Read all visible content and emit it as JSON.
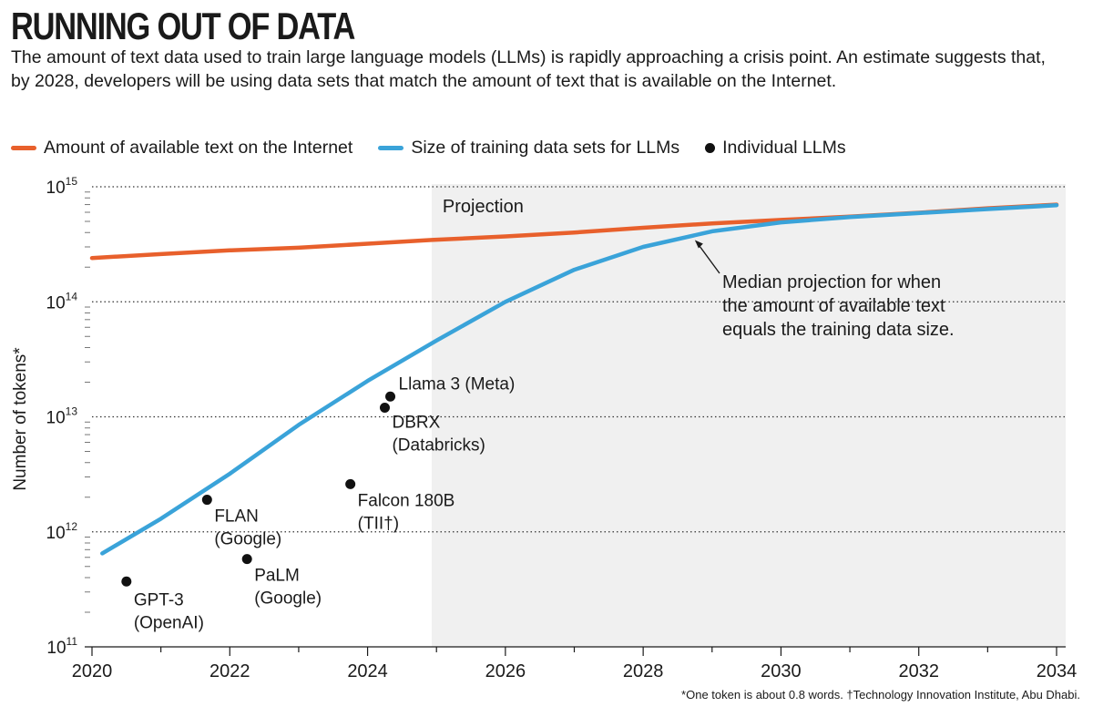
{
  "header": {
    "title": "RUNNING OUT OF DATA",
    "subtitle": "The amount of text data used to train large language models (LLMs) is rapidly approaching a crisis point. An estimate suggests that, by 2028, developers will be using data sets that match the amount of text that is available on the Internet."
  },
  "legend": {
    "internet": "Amount of available text on the Internet",
    "training": "Size of training data sets for LLMs",
    "llms": "Individual LLMs"
  },
  "colors": {
    "internet": "#e8602c",
    "training": "#3aa3d9",
    "llm": "#111111",
    "projection_bg": "#f0f0f0",
    "grid": "#333333"
  },
  "footnote": "*One token is about 0.8 words. †Technology Innovation Institute, Abu Dhabi.",
  "chart_data": {
    "type": "line",
    "title": "RUNNING OUT OF DATA",
    "xlabel": "",
    "ylabel": "Number of tokens*",
    "xlim": [
      2020,
      2034
    ],
    "y_scale": "log10",
    "ylim_exp": [
      11,
      15
    ],
    "x_ticks": [
      "2020",
      "2022",
      "2024",
      "2026",
      "2028",
      "2030",
      "2032",
      "2034"
    ],
    "x_tick_values": [
      2020,
      2022,
      2024,
      2026,
      2028,
      2030,
      2032,
      2034
    ],
    "y_ticks": [
      {
        "exp": 11,
        "base": "10",
        "sup": "11"
      },
      {
        "exp": 12,
        "base": "10",
        "sup": "12"
      },
      {
        "exp": 13,
        "base": "10",
        "sup": "13"
      },
      {
        "exp": 14,
        "base": "10",
        "sup": "14"
      },
      {
        "exp": 15,
        "base": "10",
        "sup": "15"
      }
    ],
    "projection": {
      "start": 2024.93,
      "label": "Projection"
    },
    "series": [
      {
        "name": "Amount of available text on the Internet",
        "key": "internet",
        "x": [
          2020.0,
          2021.0,
          2022.0,
          2023.0,
          2024.0,
          2024.93,
          2026.0,
          2027.0,
          2028.0,
          2029.0,
          2030.0,
          2031.0,
          2032.0,
          2033.0,
          2034.0
        ],
        "y": [
          240000000000000.0,
          260000000000000.0,
          280000000000000.0,
          295000000000000.0,
          320000000000000.0,
          345000000000000.0,
          370000000000000.0,
          400000000000000.0,
          440000000000000.0,
          480000000000000.0,
          515000000000000.0,
          550000000000000.0,
          595000000000000.0,
          650000000000000.0,
          700000000000000.0
        ]
      },
      {
        "name": "Size of training data sets for LLMs",
        "key": "training",
        "x": [
          2020.15,
          2021.0,
          2022.0,
          2023.0,
          2024.0,
          2025.0,
          2026.0,
          2027.0,
          2028.0,
          2029.0,
          2030.0,
          2031.0,
          2032.0,
          2033.0,
          2034.0
        ],
        "y": [
          650000000000.0,
          1300000000000.0,
          3200000000000.0,
          8500000000000.0,
          20500000000000.0,
          46000000000000.0,
          100000000000000.0,
          190000000000000.0,
          300000000000000.0,
          410000000000000.0,
          490000000000000.0,
          545000000000000.0,
          590000000000000.0,
          640000000000000.0,
          690000000000000.0
        ]
      }
    ],
    "llms": [
      {
        "name": "GPT-3",
        "org": "(OpenAI)",
        "x": 2020.5,
        "y": 370000000000.0
      },
      {
        "name": "FLAN",
        "org": "(Google)",
        "x": 2021.67,
        "y": 1900000000000.0
      },
      {
        "name": "PaLM",
        "org": "(Google)",
        "x": 2022.25,
        "y": 580000000000.0
      },
      {
        "name": "Falcon 180B",
        "org": "(TII†)",
        "x": 2023.75,
        "y": 2600000000000.0
      },
      {
        "name": "DBRX",
        "org": "(Databricks)",
        "x": 2024.25,
        "y": 12000000000000.0
      },
      {
        "name": "Llama 3 (Meta)",
        "org": "",
        "x": 2024.33,
        "y": 15000000000000.0
      }
    ],
    "annotation": {
      "lines": [
        "Median projection for when",
        "the amount of available text",
        "equals the training data size."
      ],
      "target_x": 2028.75,
      "target_y": 370000000000000.0
    }
  }
}
